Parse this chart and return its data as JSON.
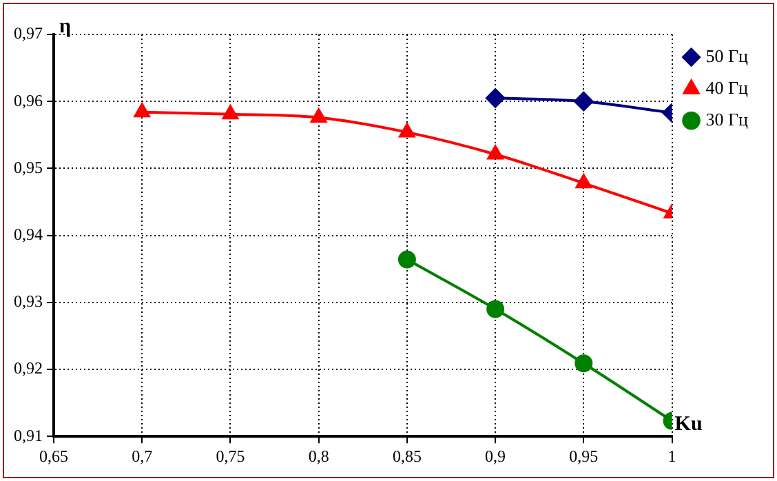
{
  "chart_data": {
    "type": "line",
    "xlabel": "Ku",
    "ylabel": "η",
    "xlim": [
      0.65,
      1
    ],
    "ylim": [
      0.91,
      0.97
    ],
    "xticks": [
      {
        "value": 0.65,
        "label": "0,65"
      },
      {
        "value": 0.7,
        "label": "0,7"
      },
      {
        "value": 0.75,
        "label": "0,75"
      },
      {
        "value": 0.8,
        "label": "0,8"
      },
      {
        "value": 0.85,
        "label": "0,85"
      },
      {
        "value": 0.9,
        "label": "0,9"
      },
      {
        "value": 0.95,
        "label": "0,95"
      },
      {
        "value": 1,
        "label": "1"
      }
    ],
    "yticks": [
      {
        "value": 0.91,
        "label": "0,91"
      },
      {
        "value": 0.92,
        "label": "0,92"
      },
      {
        "value": 0.93,
        "label": "0,93"
      },
      {
        "value": 0.94,
        "label": "0,94"
      },
      {
        "value": 0.95,
        "label": "0,95"
      },
      {
        "value": 0.96,
        "label": "0,96"
      },
      {
        "value": 0.97,
        "label": "0,97"
      }
    ],
    "grid": true,
    "legend": "top right",
    "line_style": "solid",
    "series": [
      {
        "name": "50 Гц",
        "color": "#000080",
        "marker": "diamond",
        "x": [
          0.9,
          0.95,
          1
        ],
        "values": [
          0.9605,
          0.96,
          0.9583
        ]
      },
      {
        "name": "40 Гц",
        "color": "#ff0000",
        "marker": "triangle",
        "x": [
          0.7,
          0.75,
          0.8,
          0.85,
          0.9,
          0.95,
          1
        ],
        "values": [
          0.9584,
          0.9581,
          0.9576,
          0.9554,
          0.9521,
          0.9478,
          0.9433
        ]
      },
      {
        "name": "30 Гц",
        "color": "#008000",
        "marker": "circle",
        "x": [
          0.85,
          0.9,
          0.95,
          1
        ],
        "values": [
          0.9364,
          0.929,
          0.9209,
          0.9123
        ]
      }
    ]
  }
}
